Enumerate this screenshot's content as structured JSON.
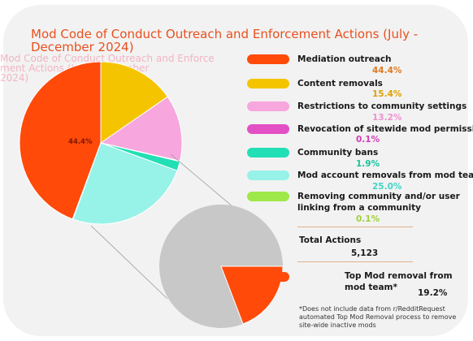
{
  "chart_data": {
    "type": "pie",
    "title": "Mod Code of Conduct Outreach and Enforcement Actions (July - December 2024)",
    "categories": [
      "Mediation outreach",
      "Content removals",
      "Restrictions to community settings",
      "Revocation of sitewide mod permissions",
      "Community bans",
      "Mod account removals from mod team",
      "Removing community and/or user linking from a community"
    ],
    "values": [
      44.4,
      15.4,
      13.2,
      0.1,
      1.9,
      25.0,
      0.1
    ],
    "value_labels": [
      "44.4%",
      "15.4%",
      "13.2%",
      "0.1%",
      "1.9%",
      "25.0%",
      "0.1%"
    ],
    "colors": [
      "#ff4a0a",
      "#f5c400",
      "#f7a6de",
      "#e34fc4",
      "#22dfb5",
      "#97f2e8",
      "#9fe84a"
    ],
    "value_colors": [
      "#e07a1e",
      "#e0a100",
      "#f08fcf",
      "#d23db5",
      "#17c49f",
      "#3fd6c6",
      "#a0d236"
    ],
    "slice_label": "44.4%",
    "total": {
      "label": "Total Actions",
      "value": "5,123"
    },
    "sub_pie": {
      "highlight_label": "Top Mod removal from mod team*",
      "highlight_value": 19.2,
      "highlight_value_label": "19.2%",
      "highlight_color": "#ff4a0a",
      "rest_color": "#c8c8c8"
    },
    "footnote": "*Does not include data from r/RedditRequest automated Top Mod Removal process to remove site-wide inactive mods",
    "ghost_lines": [
      "Mod Code of Conduct Outreach and Enforce",
      "ment Actions (July - December",
      "2024)"
    ]
  }
}
